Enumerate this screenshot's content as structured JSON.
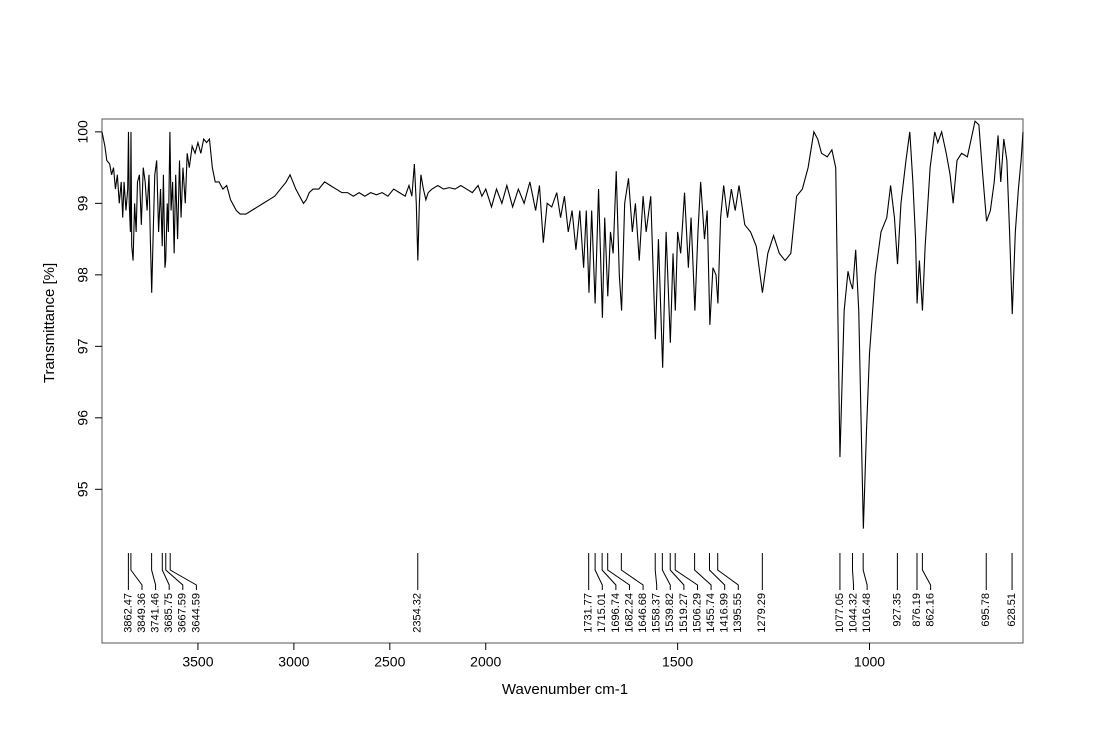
{
  "chart_data": {
    "type": "line",
    "xlabel": "Wavenumber cm-1",
    "ylabel": "Transmittance [%]",
    "color": "#000000",
    "xlim": [
      4000,
      600
    ],
    "x_compress_above": 2000,
    "x_compress_factor": 2,
    "xticks": [
      3500,
      3000,
      2500,
      2000,
      1500,
      1000
    ],
    "ylim": [
      92.85,
      100.18
    ],
    "yticks": [
      95,
      96,
      97,
      98,
      99,
      100
    ],
    "x": [
      4000,
      3985,
      3975,
      3960,
      3950,
      3940,
      3930,
      3920,
      3910,
      3900,
      3892,
      3885,
      3875,
      3866,
      3862,
      3858,
      3852,
      3849,
      3845,
      3838,
      3830,
      3822,
      3815,
      3805,
      3795,
      3785,
      3775,
      3765,
      3755,
      3748,
      3741,
      3732,
      3725,
      3715,
      3705,
      3695,
      3686,
      3680,
      3672,
      3668,
      3660,
      3654,
      3646,
      3640,
      3632,
      3624,
      3616,
      3606,
      3596,
      3588,
      3578,
      3566,
      3556,
      3545,
      3530,
      3515,
      3500,
      3485,
      3470,
      3455,
      3440,
      3425,
      3410,
      3390,
      3370,
      3350,
      3330,
      3300,
      3280,
      3250,
      3220,
      3190,
      3160,
      3130,
      3100,
      3070,
      3040,
      3020,
      3005,
      2990,
      2970,
      2950,
      2935,
      2920,
      2900,
      2870,
      2840,
      2810,
      2780,
      2750,
      2720,
      2690,
      2660,
      2630,
      2600,
      2570,
      2540,
      2510,
      2480,
      2450,
      2420,
      2400,
      2385,
      2372,
      2362,
      2354,
      2346,
      2338,
      2325,
      2312,
      2300,
      2280,
      2250,
      2220,
      2190,
      2160,
      2130,
      2100,
      2070,
      2040,
      2020,
      2000,
      1985,
      1972,
      1958,
      1945,
      1930,
      1915,
      1900,
      1885,
      1870,
      1860,
      1850,
      1840,
      1828,
      1815,
      1805,
      1795,
      1785,
      1775,
      1765,
      1755,
      1745,
      1738,
      1731,
      1724,
      1715,
      1706,
      1696,
      1690,
      1682,
      1675,
      1668,
      1660,
      1652,
      1646,
      1638,
      1628,
      1618,
      1610,
      1600,
      1590,
      1582,
      1570,
      1558,
      1550,
      1539,
      1530,
      1519,
      1512,
      1506,
      1500,
      1492,
      1482,
      1472,
      1465,
      1455,
      1447,
      1440,
      1430,
      1423,
      1416,
      1408,
      1400,
      1395,
      1388,
      1380,
      1370,
      1360,
      1350,
      1340,
      1325,
      1310,
      1295,
      1279,
      1265,
      1250,
      1235,
      1220,
      1205,
      1190,
      1175,
      1160,
      1145,
      1135,
      1125,
      1110,
      1098,
      1088,
      1077,
      1066,
      1056,
      1050,
      1044,
      1036,
      1028,
      1016,
      1008,
      1000,
      985,
      970,
      955,
      945,
      935,
      927,
      918,
      905,
      895,
      887,
      880,
      876,
      870,
      862,
      855,
      842,
      830,
      822,
      812,
      800,
      790,
      782,
      772,
      760,
      745,
      735,
      725,
      715,
      705,
      695,
      685,
      675,
      665,
      658,
      650,
      642,
      635,
      628,
      620,
      612,
      605,
      600
    ],
    "values": [
      100,
      99.8,
      99.6,
      99.55,
      99.4,
      99.5,
      99.2,
      99.4,
      99.0,
      99.3,
      98.8,
      99.3,
      98.9,
      99.2,
      100,
      99.0,
      98.6,
      100,
      98.4,
      98.2,
      99.0,
      98.6,
      99.3,
      99.4,
      98.7,
      99.5,
      99.3,
      98.9,
      99.4,
      98.5,
      97.75,
      98.7,
      99.4,
      99.6,
      98.6,
      99.2,
      98.4,
      99.4,
      98.1,
      98.2,
      99.0,
      98.6,
      100,
      98.9,
      99.3,
      98.3,
      99.4,
      98.5,
      99.6,
      98.8,
      99.5,
      99.0,
      99.7,
      99.5,
      99.8,
      99.7,
      99.85,
      99.7,
      99.9,
      99.85,
      99.9,
      99.5,
      99.3,
      99.3,
      99.2,
      99.25,
      99.05,
      98.9,
      98.85,
      98.85,
      98.9,
      98.95,
      99.0,
      99.05,
      99.1,
      99.2,
      99.3,
      99.4,
      99.3,
      99.2,
      99.1,
      99.0,
      99.05,
      99.15,
      99.2,
      99.2,
      99.3,
      99.25,
      99.2,
      99.15,
      99.15,
      99.1,
      99.15,
      99.1,
      99.15,
      99.12,
      99.15,
      99.1,
      99.2,
      99.15,
      99.1,
      99.25,
      99.1,
      99.55,
      99.0,
      98.2,
      99.0,
      99.4,
      99.2,
      99.05,
      99.15,
      99.2,
      99.25,
      99.2,
      99.22,
      99.2,
      99.25,
      99.2,
      99.15,
      99.25,
      99.1,
      99.2,
      98.95,
      99.2,
      99.0,
      99.25,
      98.95,
      99.2,
      99.0,
      99.3,
      98.9,
      99.25,
      98.45,
      99.0,
      98.95,
      99.15,
      98.8,
      99.1,
      98.6,
      98.9,
      98.35,
      98.9,
      98.1,
      98.9,
      97.75,
      98.9,
      97.6,
      99.2,
      97.4,
      98.8,
      97.7,
      98.6,
      98.3,
      99.45,
      98.0,
      97.5,
      99.0,
      99.35,
      98.6,
      99.0,
      98.2,
      99.1,
      98.6,
      99.1,
      97.1,
      98.5,
      96.7,
      98.6,
      97.05,
      98.3,
      97.5,
      98.6,
      98.3,
      99.15,
      98.1,
      98.8,
      97.5,
      98.6,
      99.3,
      98.5,
      98.9,
      97.3,
      98.1,
      98.0,
      97.6,
      98.8,
      99.25,
      98.8,
      99.2,
      98.9,
      99.25,
      98.7,
      98.6,
      98.4,
      97.75,
      98.3,
      98.55,
      98.3,
      98.2,
      98.3,
      99.1,
      99.2,
      99.5,
      100,
      99.9,
      99.7,
      99.65,
      99.75,
      99.5,
      95.45,
      97.5,
      98.05,
      97.9,
      97.8,
      98.35,
      97.5,
      94.45,
      95.8,
      96.9,
      98.0,
      98.6,
      98.8,
      99.25,
      98.8,
      98.15,
      99.0,
      99.6,
      100,
      99.3,
      98.5,
      97.6,
      98.2,
      97.5,
      98.4,
      99.5,
      100,
      99.85,
      100,
      99.7,
      99.4,
      99.0,
      99.6,
      99.7,
      99.65,
      99.9,
      100.15,
      100.1,
      99.4,
      98.75,
      98.9,
      99.3,
      99.95,
      99.3,
      99.9,
      99.6,
      98.6,
      97.45,
      98.6,
      99.2,
      99.6,
      100
    ],
    "peak_labels": [
      3862.47,
      3849.36,
      3741.46,
      3685.75,
      3667.59,
      3644.59,
      2354.32,
      1731.77,
      1715.01,
      1696.74,
      1682.24,
      1646.68,
      1558.37,
      1539.82,
      1519.27,
      1506.29,
      1455.74,
      1416.99,
      1395.55,
      1279.29,
      1077.05,
      1044.32,
      1016.48,
      927.35,
      876.19,
      862.16,
      695.78,
      628.51
    ]
  }
}
